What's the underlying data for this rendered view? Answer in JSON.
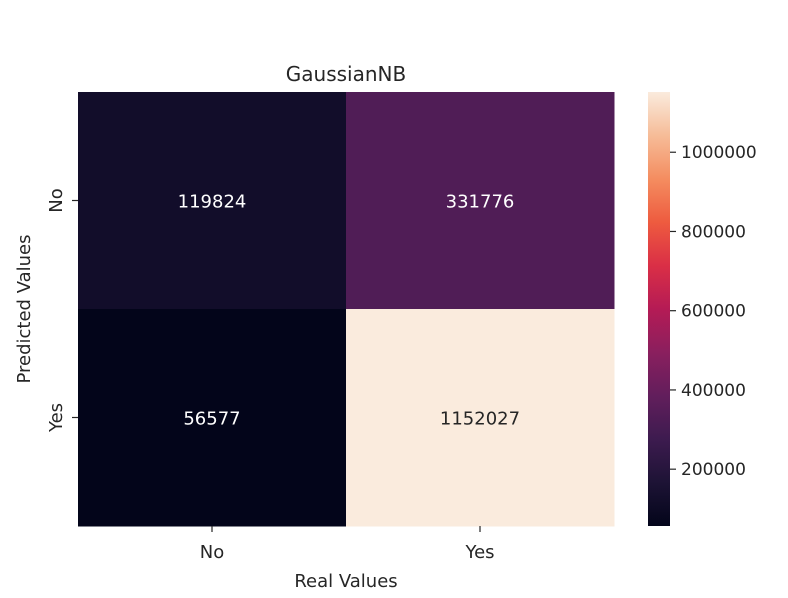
{
  "chart_data": {
    "type": "heatmap",
    "title": "GaussianNB",
    "xlabel": "Real Values",
    "ylabel": "Predicted Values",
    "x_categories": [
      "No",
      "Yes"
    ],
    "y_categories": [
      "No",
      "Yes"
    ],
    "values": [
      [
        119824,
        331776
      ],
      [
        56577,
        1152027
      ]
    ],
    "cell_labels": [
      [
        "119824",
        "331776"
      ],
      [
        "56577",
        "1152027"
      ]
    ],
    "colorbar": {
      "colormap": "rocket",
      "vmin": 56577,
      "vmax": 1152027,
      "ticks": [
        200000,
        400000,
        600000,
        800000,
        1000000
      ],
      "tick_labels": [
        "200000",
        "400000",
        "600000",
        "800000",
        "1000000"
      ]
    },
    "colors": {
      "low_text": "#ffffff",
      "high_text": "#262626"
    }
  }
}
